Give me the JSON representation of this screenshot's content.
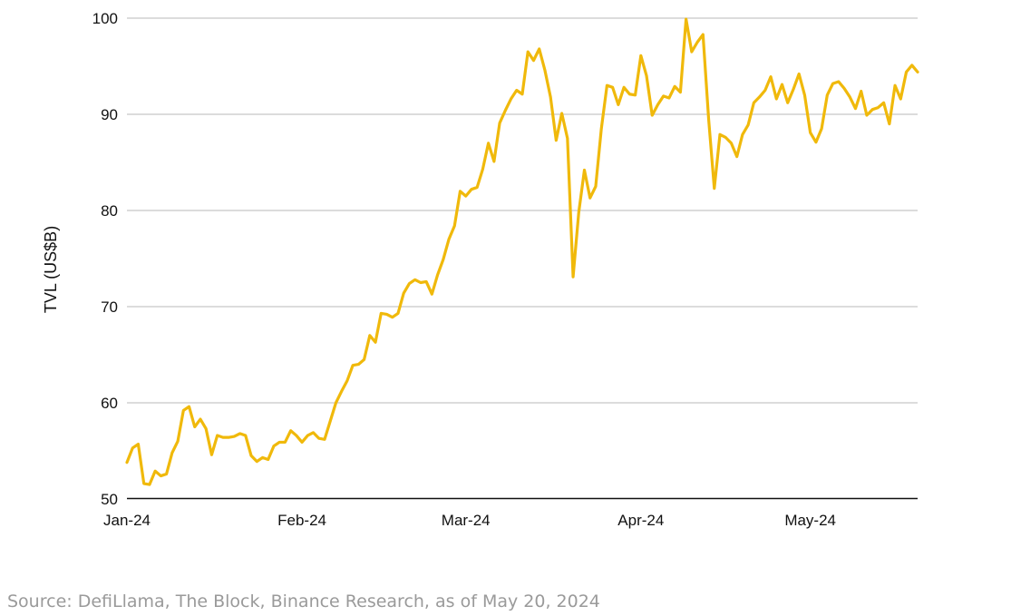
{
  "chart_data": {
    "type": "line",
    "title": "",
    "xlabel": "",
    "ylabel": "TVL (US$B)",
    "ylim": [
      50,
      100
    ],
    "yticks": [
      50,
      60,
      70,
      80,
      90,
      100
    ],
    "xlim": [
      "2024-01-01",
      "2024-05-20"
    ],
    "xticks": [
      {
        "date": "2024-01-01",
        "label": "Jan-24"
      },
      {
        "date": "2024-02-01",
        "label": "Feb-24"
      },
      {
        "date": "2024-03-01",
        "label": "Mar-24"
      },
      {
        "date": "2024-04-01",
        "label": "Apr-24"
      },
      {
        "date": "2024-05-01",
        "label": "May-24"
      }
    ],
    "grid": true,
    "legend": "none",
    "series": [
      {
        "color": "#F0B90B",
        "points": [
          [
            "2024-01-01",
            53.8
          ],
          [
            "2024-01-02",
            55.3
          ],
          [
            "2024-01-03",
            55.7
          ],
          [
            "2024-01-04",
            51.6
          ],
          [
            "2024-01-05",
            51.5
          ],
          [
            "2024-01-06",
            52.9
          ],
          [
            "2024-01-07",
            52.4
          ],
          [
            "2024-01-08",
            52.6
          ],
          [
            "2024-01-09",
            54.8
          ],
          [
            "2024-01-10",
            56.0
          ],
          [
            "2024-01-11",
            59.2
          ],
          [
            "2024-01-12",
            59.6
          ],
          [
            "2024-01-13",
            57.5
          ],
          [
            "2024-01-14",
            58.3
          ],
          [
            "2024-01-15",
            57.3
          ],
          [
            "2024-01-16",
            54.6
          ],
          [
            "2024-01-17",
            56.6
          ],
          [
            "2024-01-18",
            56.4
          ],
          [
            "2024-01-19",
            56.4
          ],
          [
            "2024-01-20",
            56.5
          ],
          [
            "2024-01-21",
            56.8
          ],
          [
            "2024-01-22",
            56.6
          ],
          [
            "2024-01-23",
            54.5
          ],
          [
            "2024-01-24",
            53.9
          ],
          [
            "2024-01-25",
            54.3
          ],
          [
            "2024-01-26",
            54.1
          ],
          [
            "2024-01-27",
            55.5
          ],
          [
            "2024-01-28",
            55.9
          ],
          [
            "2024-01-29",
            55.9
          ],
          [
            "2024-01-30",
            57.1
          ],
          [
            "2024-01-31",
            56.6
          ],
          [
            "2024-02-01",
            55.9
          ],
          [
            "2024-02-02",
            56.6
          ],
          [
            "2024-02-03",
            56.9
          ],
          [
            "2024-02-04",
            56.3
          ],
          [
            "2024-02-05",
            56.2
          ],
          [
            "2024-02-06",
            58.1
          ],
          [
            "2024-02-07",
            60.0
          ],
          [
            "2024-02-08",
            61.2
          ],
          [
            "2024-02-09",
            62.3
          ],
          [
            "2024-02-10",
            63.9
          ],
          [
            "2024-02-11",
            64.0
          ],
          [
            "2024-02-12",
            64.5
          ],
          [
            "2024-02-13",
            67.0
          ],
          [
            "2024-02-14",
            66.3
          ],
          [
            "2024-02-15",
            69.3
          ],
          [
            "2024-02-16",
            69.2
          ],
          [
            "2024-02-17",
            68.9
          ],
          [
            "2024-02-18",
            69.3
          ],
          [
            "2024-02-19",
            71.4
          ],
          [
            "2024-02-20",
            72.4
          ],
          [
            "2024-02-21",
            72.8
          ],
          [
            "2024-02-22",
            72.5
          ],
          [
            "2024-02-23",
            72.6
          ],
          [
            "2024-02-24",
            71.3
          ],
          [
            "2024-02-25",
            73.3
          ],
          [
            "2024-02-26",
            74.9
          ],
          [
            "2024-02-27",
            77.0
          ],
          [
            "2024-02-28",
            78.4
          ],
          [
            "2024-02-29",
            82.0
          ],
          [
            "2024-03-01",
            81.5
          ],
          [
            "2024-03-02",
            82.2
          ],
          [
            "2024-03-03",
            82.4
          ],
          [
            "2024-03-04",
            84.3
          ],
          [
            "2024-03-05",
            87.0
          ],
          [
            "2024-03-06",
            85.1
          ],
          [
            "2024-03-07",
            89.1
          ],
          [
            "2024-03-08",
            90.4
          ],
          [
            "2024-03-09",
            91.6
          ],
          [
            "2024-03-10",
            92.5
          ],
          [
            "2024-03-11",
            92.1
          ],
          [
            "2024-03-12",
            96.5
          ],
          [
            "2024-03-13",
            95.6
          ],
          [
            "2024-03-14",
            96.8
          ],
          [
            "2024-03-15",
            94.6
          ],
          [
            "2024-03-16",
            91.8
          ],
          [
            "2024-03-17",
            87.3
          ],
          [
            "2024-03-18",
            90.1
          ],
          [
            "2024-03-19",
            87.5
          ],
          [
            "2024-03-20",
            73.1
          ],
          [
            "2024-03-21",
            79.8
          ],
          [
            "2024-03-22",
            84.2
          ],
          [
            "2024-03-23",
            81.3
          ],
          [
            "2024-03-24",
            82.5
          ],
          [
            "2024-03-25",
            88.5
          ],
          [
            "2024-03-26",
            93.0
          ],
          [
            "2024-03-27",
            92.8
          ],
          [
            "2024-03-28",
            91.0
          ],
          [
            "2024-03-29",
            92.8
          ],
          [
            "2024-03-30",
            92.1
          ],
          [
            "2024-03-31",
            92.0
          ],
          [
            "2024-04-01",
            96.1
          ],
          [
            "2024-04-02",
            94.0
          ],
          [
            "2024-04-03",
            89.9
          ],
          [
            "2024-04-04",
            91.0
          ],
          [
            "2024-04-05",
            91.9
          ],
          [
            "2024-04-06",
            91.7
          ],
          [
            "2024-04-07",
            92.9
          ],
          [
            "2024-04-08",
            92.3
          ],
          [
            "2024-04-09",
            99.9
          ],
          [
            "2024-04-10",
            96.5
          ],
          [
            "2024-04-11",
            97.5
          ],
          [
            "2024-04-12",
            98.3
          ],
          [
            "2024-04-13",
            89.5
          ],
          [
            "2024-04-14",
            82.3
          ],
          [
            "2024-04-15",
            87.9
          ],
          [
            "2024-04-16",
            87.6
          ],
          [
            "2024-04-17",
            87.0
          ],
          [
            "2024-04-18",
            85.6
          ],
          [
            "2024-04-19",
            87.9
          ],
          [
            "2024-04-20",
            88.9
          ],
          [
            "2024-04-21",
            91.2
          ],
          [
            "2024-04-22",
            91.8
          ],
          [
            "2024-04-23",
            92.5
          ],
          [
            "2024-04-24",
            93.9
          ],
          [
            "2024-04-25",
            91.6
          ],
          [
            "2024-04-26",
            93.1
          ],
          [
            "2024-04-27",
            91.2
          ],
          [
            "2024-04-28",
            92.6
          ],
          [
            "2024-04-29",
            94.2
          ],
          [
            "2024-04-30",
            92.0
          ],
          [
            "2024-05-01",
            88.1
          ],
          [
            "2024-05-02",
            87.1
          ],
          [
            "2024-05-03",
            88.5
          ],
          [
            "2024-05-04",
            92.0
          ],
          [
            "2024-05-05",
            93.2
          ],
          [
            "2024-05-06",
            93.4
          ],
          [
            "2024-05-07",
            92.7
          ],
          [
            "2024-05-08",
            91.8
          ],
          [
            "2024-05-09",
            90.6
          ],
          [
            "2024-05-10",
            92.4
          ],
          [
            "2024-05-11",
            89.9
          ],
          [
            "2024-05-12",
            90.5
          ],
          [
            "2024-05-13",
            90.7
          ],
          [
            "2024-05-14",
            91.2
          ],
          [
            "2024-05-15",
            89.0
          ],
          [
            "2024-05-16",
            93.0
          ],
          [
            "2024-05-17",
            91.6
          ],
          [
            "2024-05-18",
            94.4
          ],
          [
            "2024-05-19",
            95.1
          ],
          [
            "2024-05-20",
            94.4
          ]
        ]
      }
    ]
  },
  "source_note": "Source: DefiLlama, The Block, Binance Research, as of May 20, 2024"
}
